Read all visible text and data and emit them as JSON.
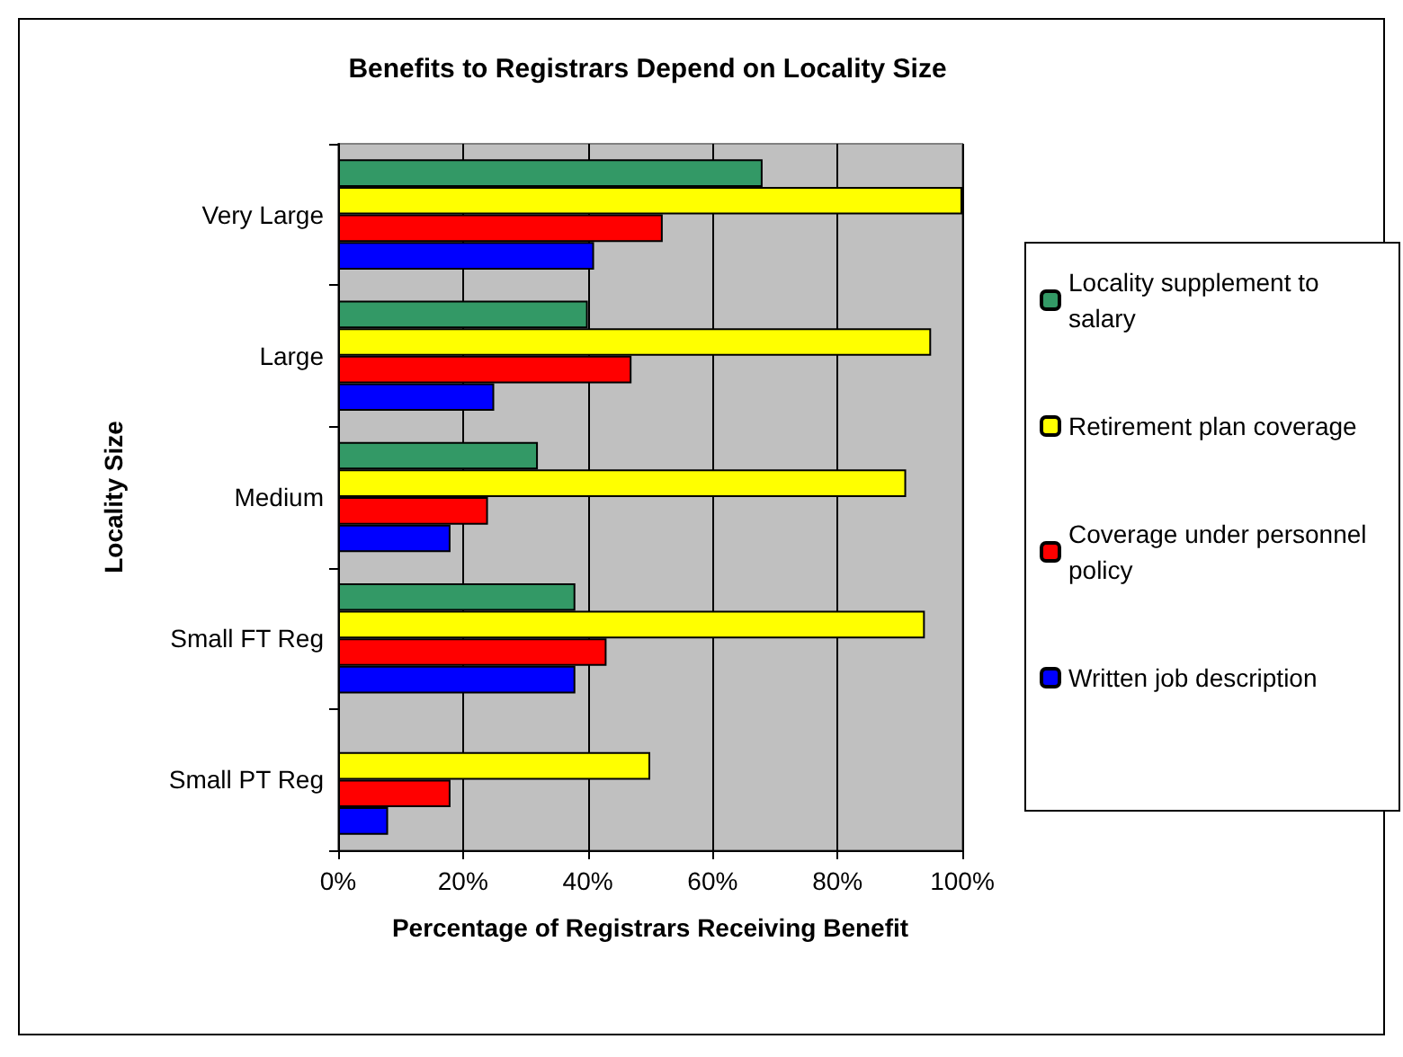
{
  "chart_data": {
    "type": "bar",
    "orientation": "horizontal",
    "title": "Benefits to Registrars Depend on Locality Size",
    "xlabel": "Percentage of Registrars Receiving Benefit",
    "ylabel": "Locality Size",
    "categories": [
      "Very Large",
      "Large",
      "Medium",
      "Small FT Reg",
      "Small PT Reg"
    ],
    "series": [
      {
        "name": "Locality supplement to salary",
        "color": "#339966",
        "values": [
          68,
          40,
          32,
          38,
          null
        ]
      },
      {
        "name": "Retirement plan coverage",
        "color": "#ffff00",
        "values": [
          100,
          95,
          91,
          94,
          50
        ]
      },
      {
        "name": "Coverage under personnel policy",
        "color": "#ff0000",
        "values": [
          52,
          47,
          24,
          43,
          18
        ]
      },
      {
        "name": "Written job description",
        "color": "#0000ff",
        "values": [
          41,
          25,
          18,
          38,
          8
        ]
      }
    ],
    "xlim": [
      0,
      100
    ],
    "xticks": [
      {
        "value": 0,
        "label": "0%"
      },
      {
        "value": 20,
        "label": "20%"
      },
      {
        "value": 40,
        "label": "40%"
      },
      {
        "value": 60,
        "label": "60%"
      },
      {
        "value": 80,
        "label": "80%"
      },
      {
        "value": 100,
        "label": "100%"
      }
    ],
    "grid": "x",
    "legend": "right"
  }
}
